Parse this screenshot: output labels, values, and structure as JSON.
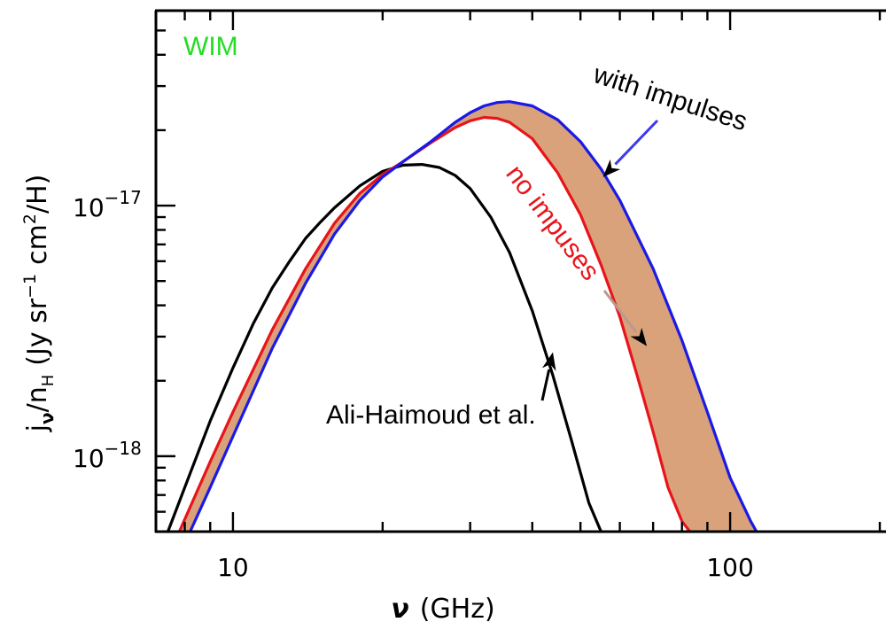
{
  "chart_data": {
    "type": "line",
    "panel_label": "WIM",
    "xscale": "log",
    "yscale": "log",
    "xlim": [
      7.0,
      200.0
    ],
    "ylim": [
      5e-19,
      6e-17
    ],
    "x_ticks": [
      {
        "value": 10,
        "label": "10"
      },
      {
        "value": 100,
        "label": "100"
      }
    ],
    "y_ticks": [
      {
        "value": 1e-17,
        "base": "10",
        "exp": "−17"
      },
      {
        "value": 1e-18,
        "base": "10",
        "exp": "−18"
      }
    ],
    "xlabel": {
      "symbol": "ν",
      "rest": "(GHz)"
    },
    "ylabel": {
      "j": "j",
      "nu": "ν",
      "slash": "/n",
      "H": "H",
      "unit_a": "(Jy sr",
      "exp": "−1",
      "unit_b": "cm",
      "exp2": "2",
      "unit_c": "/H)"
    },
    "series": [
      {
        "key": "ali",
        "color": "#000000",
        "x": [
          7.4,
          8,
          9,
          10,
          11,
          12,
          13,
          14,
          15,
          16,
          18,
          20,
          22,
          24,
          26,
          28,
          30,
          33,
          36,
          40,
          44,
          48,
          52,
          55
        ],
        "y": [
          5e-19,
          7.5e-19,
          1.38e-18,
          2.25e-18,
          3.4e-18,
          4.7e-18,
          6e-18,
          7.4e-18,
          8.6e-18,
          9.8e-18,
          1.2e-17,
          1.37e-17,
          1.45e-17,
          1.46e-17,
          1.42e-17,
          1.32e-17,
          1.17e-17,
          9e-18,
          6.5e-18,
          3.8e-18,
          2.1e-18,
          1.15e-18,
          6.5e-19,
          5e-19
        ]
      },
      {
        "key": "no_impulses",
        "color": "#e8141b",
        "x": [
          7.8,
          8,
          9,
          10,
          12,
          14,
          16,
          18,
          20,
          22,
          25,
          28,
          30,
          32,
          34,
          36,
          40,
          45,
          50,
          55,
          60,
          65,
          70,
          75,
          80,
          83
        ],
        "y": [
          5e-19,
          5.6e-19,
          9.5e-19,
          1.5e-18,
          3.2e-18,
          5.6e-18,
          8.5e-18,
          1.12e-17,
          1.33e-17,
          1.5e-17,
          1.78e-17,
          2.05e-17,
          2.18e-17,
          2.25e-17,
          2.23e-17,
          2.15e-17,
          1.85e-17,
          1.35e-17,
          9.2e-18,
          5.8e-18,
          3.6e-18,
          2.1e-18,
          1.25e-18,
          7.5e-19,
          5.5e-19,
          5e-19
        ]
      },
      {
        "key": "with_impulses",
        "color": "#1a1ae6",
        "x": [
          8.2,
          9,
          10,
          12,
          14,
          16,
          18,
          20,
          22,
          25,
          28,
          30,
          32,
          34,
          36,
          40,
          45,
          50,
          55,
          60,
          70,
          80,
          90,
          100,
          110,
          113
        ],
        "y": [
          5e-19,
          7.5e-19,
          1.2e-18,
          2.7e-18,
          4.9e-18,
          7.7e-18,
          1.05e-17,
          1.3e-17,
          1.5e-17,
          1.8e-17,
          2.15e-17,
          2.35e-17,
          2.5e-17,
          2.58e-17,
          2.6e-17,
          2.5e-17,
          2.2e-17,
          1.8e-17,
          1.4e-17,
          1.05e-17,
          5.6e-18,
          2.9e-18,
          1.5e-18,
          8.2e-19,
          5.5e-19,
          5e-19
        ]
      }
    ],
    "band": {
      "between": [
        "no_impulses",
        "with_impulses"
      ],
      "color": "#d9a27a"
    },
    "annotations": [
      {
        "key": "with",
        "text": "with impulses",
        "color": "#000000",
        "arrow_color": "#3a3aee",
        "arrow_tip": [
          55.5,
          1.3e-17
        ]
      },
      {
        "key": "no",
        "text": "no impuses",
        "color": "#e8141b",
        "arrow_color": "#b89a8e",
        "arrow_tip": [
          68,
          2.75e-18
        ]
      },
      {
        "key": "ali",
        "text": "Ali-Haimoud et al.",
        "color": "#000000",
        "arrow_color": "#000000",
        "arrow_tip": [
          44,
          2.6e-18
        ]
      }
    ],
    "colors": {
      "panel_label": "#22dd22",
      "axis": "#000000"
    }
  }
}
